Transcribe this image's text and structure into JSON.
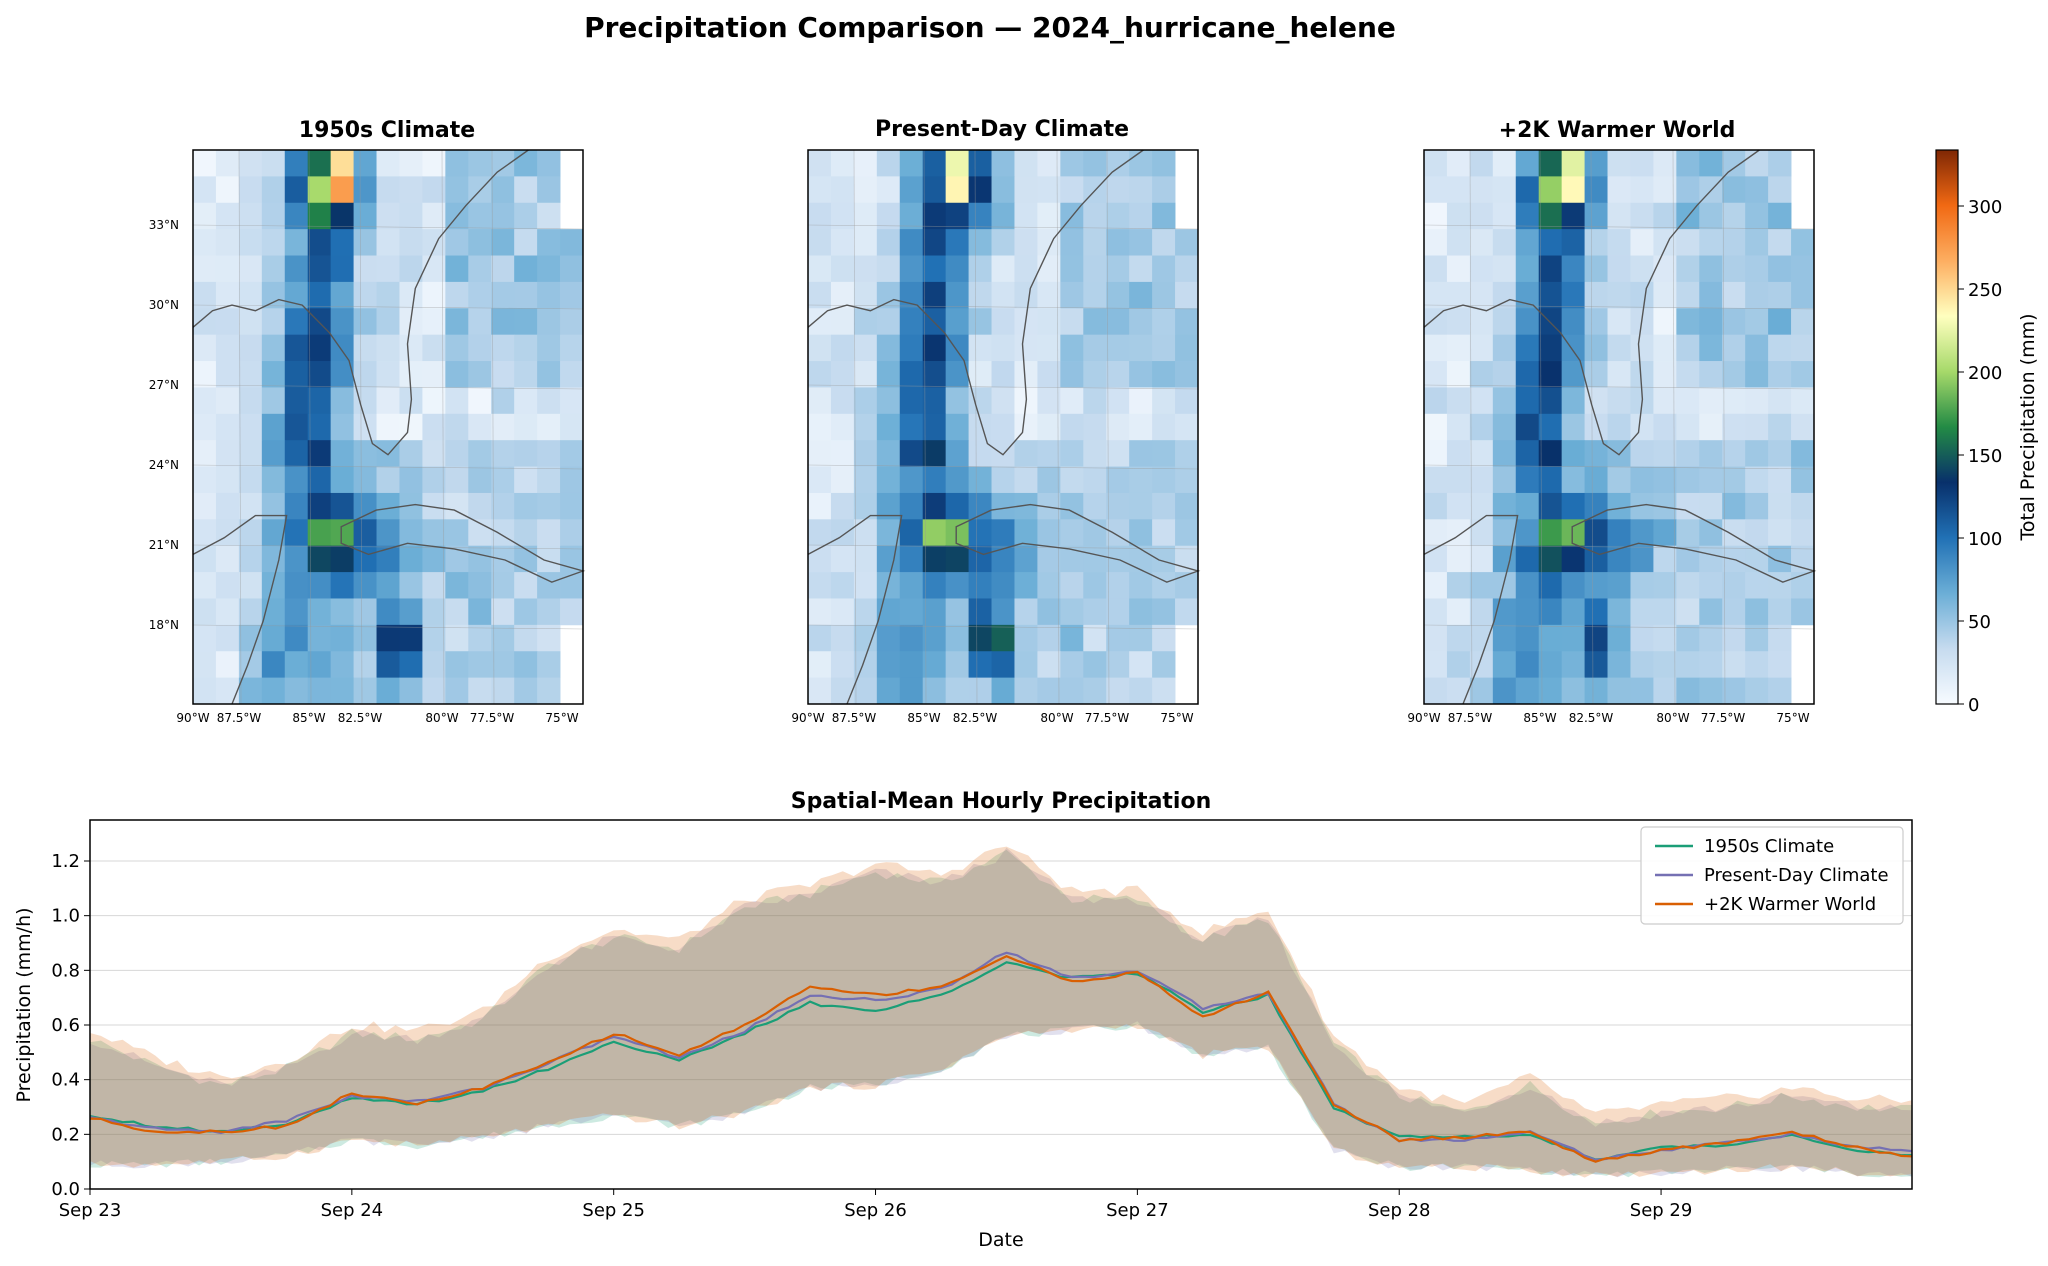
{
  "figure": {
    "title": "Precipitation Comparison — 2024_hurricane_helene"
  },
  "maps": {
    "panels": [
      {
        "title": "1950s Climate"
      },
      {
        "title": "Present-Day Climate"
      },
      {
        "title": "+2K Warmer World"
      }
    ],
    "lat_labels": [
      "33°N",
      "30°N",
      "27°N",
      "24°N",
      "21°N",
      "18°N"
    ],
    "lon_labels": [
      "90°W",
      "87.5°W",
      "85°W",
      "82.5°W",
      "80°W",
      "77.5°W",
      "75°W"
    ],
    "colorbar": {
      "label": "Total Precipitation (mm)",
      "ticks": [
        "0",
        "50",
        "100",
        "150",
        "200",
        "250",
        "300"
      ],
      "range": [
        0,
        333
      ],
      "colors": [
        "#f7fbff",
        "#c6dbef",
        "#6baed6",
        "#2171b5",
        "#08306b",
        "#238b45",
        "#a6d96a",
        "#ffffbf",
        "#fdae61",
        "#f16913",
        "#7f2704"
      ]
    },
    "grid_size": [
      17,
      21
    ]
  },
  "timeseries": {
    "title": "Spatial-Mean Hourly Precipitation",
    "xlabel": "Date",
    "ylabel": "Precipitation (mm/h)",
    "x_ticks": [
      "Sep 23",
      "Sep 24",
      "Sep 25",
      "Sep 26",
      "Sep 27",
      "Sep 28",
      "Sep 29"
    ],
    "y_ticks": [
      "0.0",
      "0.2",
      "0.4",
      "0.6",
      "0.8",
      "1.0",
      "1.2"
    ],
    "legend": [
      "1950s Climate",
      "Present-Day Climate",
      "+2K Warmer World"
    ],
    "colors": [
      "#1b9e77",
      "#7570b3",
      "#d95f02"
    ]
  },
  "chart_data": {
    "type": "line",
    "title": "Spatial-Mean Hourly Precipitation",
    "xlabel": "Date",
    "ylabel": "Precipitation (mm/h)",
    "ylim": [
      0,
      1.35
    ],
    "xlim": [
      "Sep 23",
      "Sep 29 ~23:00"
    ],
    "grid": true,
    "legend_position": "upper right",
    "x": [
      "Sep 23 00:00",
      "Sep 23 06:00",
      "Sep 23 12:00",
      "Sep 23 18:00",
      "Sep 24 00:00",
      "Sep 24 06:00",
      "Sep 24 12:00",
      "Sep 24 18:00",
      "Sep 25 00:00",
      "Sep 25 06:00",
      "Sep 25 12:00",
      "Sep 25 18:00",
      "Sep 26 00:00",
      "Sep 26 06:00",
      "Sep 26 12:00",
      "Sep 26 18:00",
      "Sep 27 00:00",
      "Sep 27 06:00",
      "Sep 27 12:00",
      "Sep 27 18:00",
      "Sep 28 00:00",
      "Sep 28 06:00",
      "Sep 28 12:00",
      "Sep 28 18:00",
      "Sep 29 00:00",
      "Sep 29 06:00",
      "Sep 29 12:00",
      "Sep 29 18:00",
      "Sep 29 23:00"
    ],
    "series": [
      {
        "name": "1950s Climate",
        "values": [
          0.27,
          0.23,
          0.21,
          0.24,
          0.33,
          0.31,
          0.36,
          0.44,
          0.54,
          0.47,
          0.57,
          0.68,
          0.65,
          0.71,
          0.83,
          0.77,
          0.79,
          0.65,
          0.71,
          0.3,
          0.19,
          0.19,
          0.2,
          0.11,
          0.15,
          0.16,
          0.2,
          0.14,
          0.12
        ]
      },
      {
        "name": "Present-Day Climate",
        "values": [
          0.26,
          0.22,
          0.21,
          0.25,
          0.34,
          0.32,
          0.37,
          0.46,
          0.56,
          0.48,
          0.58,
          0.71,
          0.69,
          0.73,
          0.87,
          0.77,
          0.8,
          0.66,
          0.72,
          0.31,
          0.18,
          0.18,
          0.21,
          0.11,
          0.14,
          0.17,
          0.2,
          0.15,
          0.14
        ]
      },
      {
        "name": "+2K Warmer World",
        "values": [
          0.26,
          0.21,
          0.21,
          0.23,
          0.35,
          0.31,
          0.37,
          0.46,
          0.57,
          0.49,
          0.6,
          0.74,
          0.71,
          0.74,
          0.85,
          0.76,
          0.79,
          0.63,
          0.72,
          0.31,
          0.18,
          0.19,
          0.21,
          0.1,
          0.14,
          0.17,
          0.21,
          0.15,
          0.12
        ]
      }
    ],
    "band": {
      "upper": [
        0.55,
        0.45,
        0.38,
        0.44,
        0.57,
        0.55,
        0.62,
        0.82,
        0.92,
        0.88,
        1.03,
        1.08,
        1.16,
        1.12,
        1.23,
        1.06,
        1.06,
        0.91,
        0.99,
        0.53,
        0.34,
        0.28,
        0.38,
        0.24,
        0.28,
        0.3,
        0.34,
        0.3,
        0.29
      ],
      "lower": [
        0.09,
        0.09,
        0.1,
        0.12,
        0.18,
        0.16,
        0.19,
        0.23,
        0.27,
        0.23,
        0.28,
        0.37,
        0.38,
        0.44,
        0.56,
        0.58,
        0.6,
        0.49,
        0.52,
        0.14,
        0.08,
        0.08,
        0.07,
        0.05,
        0.06,
        0.07,
        0.08,
        0.06,
        0.04
      ]
    }
  }
}
